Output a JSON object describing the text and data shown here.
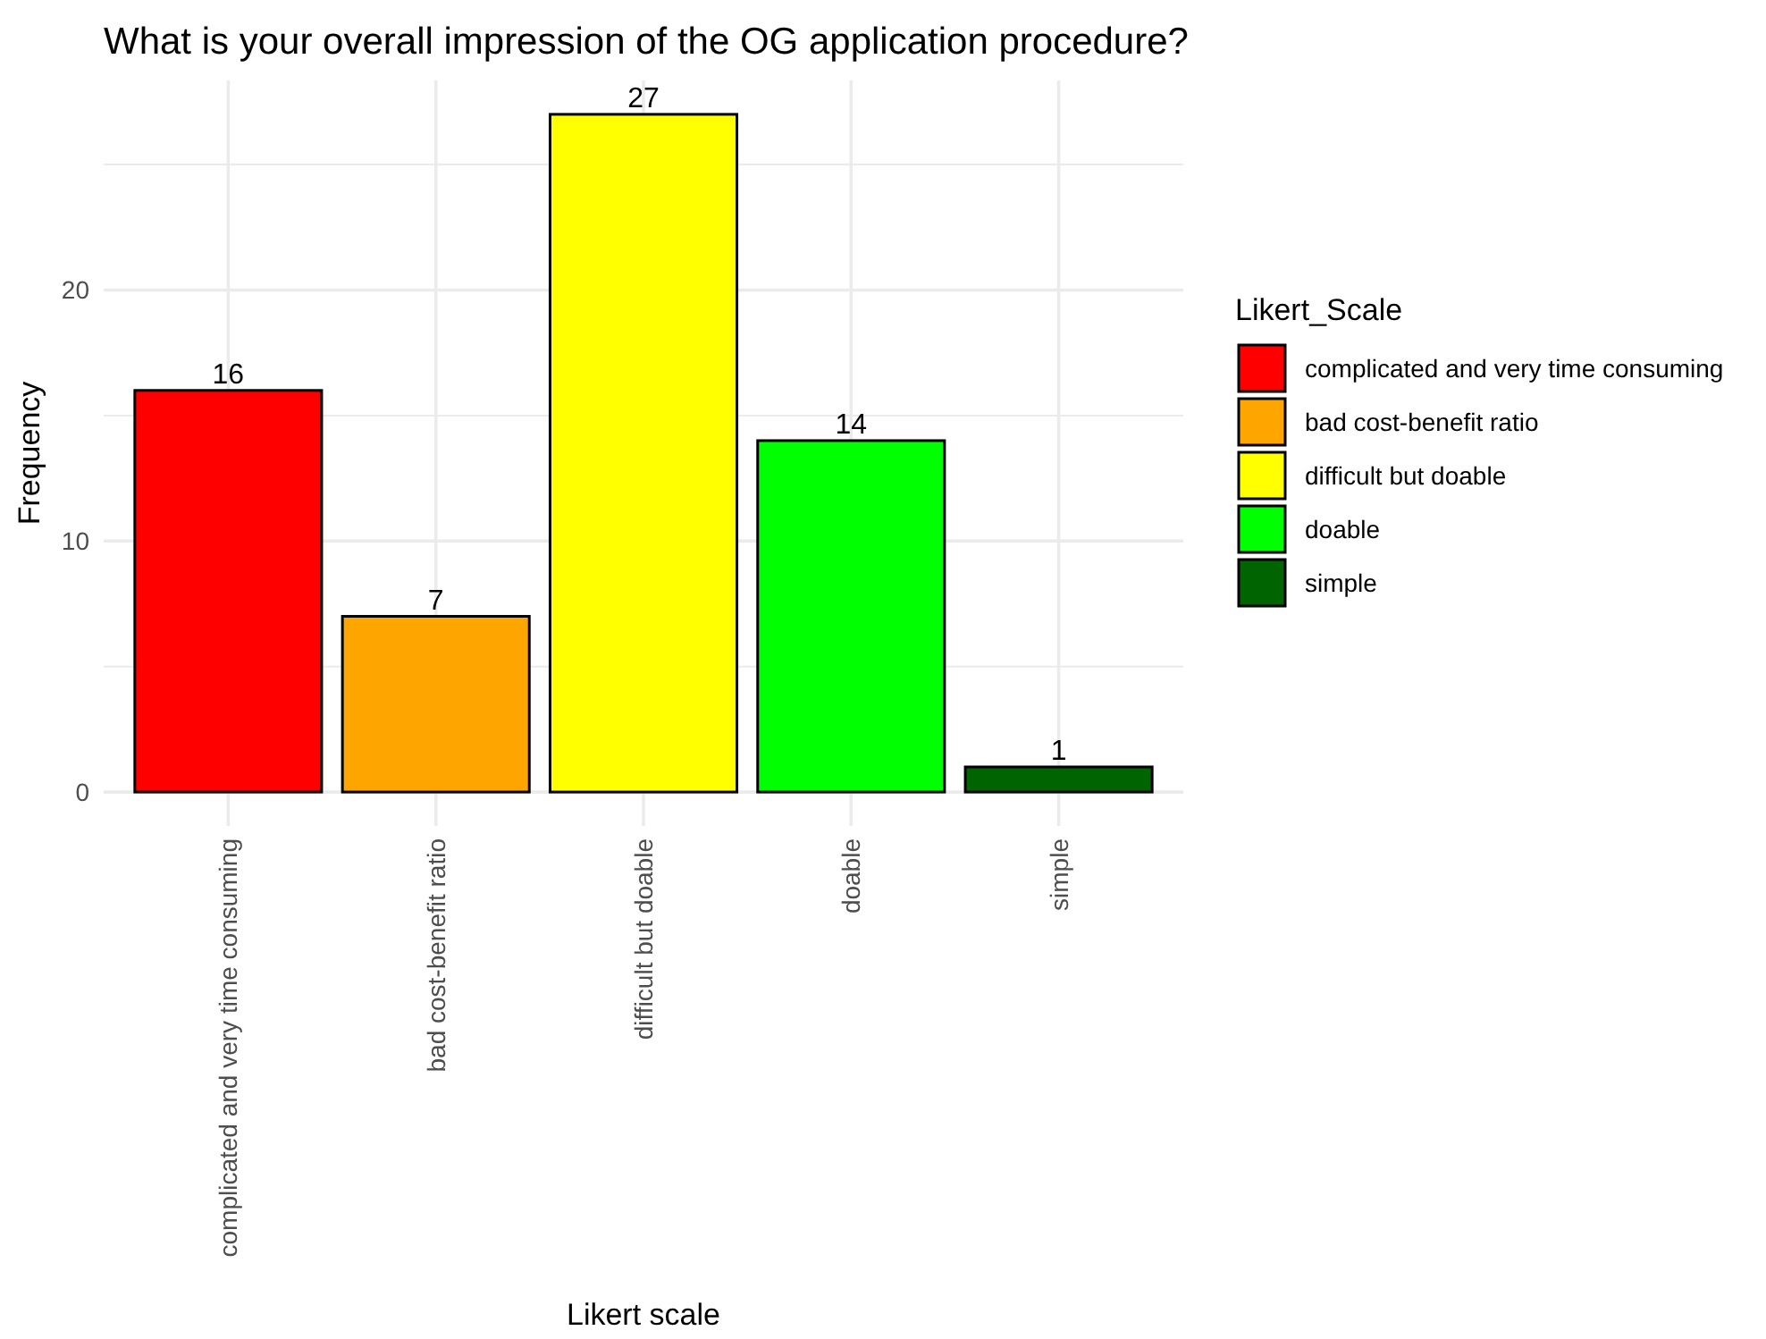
{
  "chart_data": {
    "type": "bar",
    "title": "What is your overall impression of the OG application procedure?",
    "xlabel": "Likert scale",
    "ylabel": "Frequency",
    "legend_title": "Likert_Scale",
    "categories": [
      "complicated and very time consuming",
      "bad cost-benefit ratio",
      "difficult but doable",
      "doable",
      "simple"
    ],
    "series": [
      {
        "name": "complicated and very time consuming",
        "color": "#ff0000",
        "values": [
          16,
          null,
          null,
          null,
          null
        ]
      },
      {
        "name": "bad cost-benefit ratio",
        "color": "#ffa500",
        "values": [
          null,
          7,
          null,
          null,
          null
        ]
      },
      {
        "name": "difficult but doable",
        "color": "#ffff00",
        "values": [
          null,
          null,
          27,
          null,
          null
        ]
      },
      {
        "name": "doable",
        "color": "#00ff00",
        "values": [
          null,
          null,
          null,
          14,
          null
        ]
      },
      {
        "name": "simple",
        "color": "#006400",
        "values": [
          null,
          null,
          null,
          null,
          1
        ]
      }
    ],
    "stacked": true,
    "ylim": [
      -1.35,
      28.35
    ],
    "yticks": [
      0,
      {
        "value": 5,
        "label": null
      },
      10,
      {
        "value": 15,
        "label": null
      },
      20,
      {
        "value": 25,
        "label": null
      }
    ],
    "grid": true,
    "legend": "right",
    "data_labels": true
  }
}
